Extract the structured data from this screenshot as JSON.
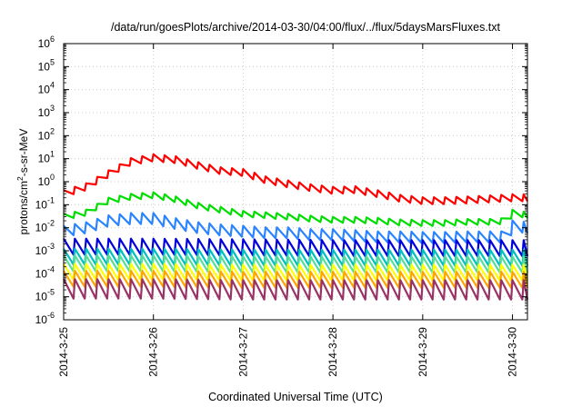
{
  "chart_data": {
    "type": "line",
    "title": "/data/run/goesPlots/archive/2014-03-30/04:00/flux/../flux/5daysMarsFluxes.txt",
    "xlabel": "Coordinated Universal Time (UTC)",
    "ylabel": {
      "prefix": "protons/cm",
      "sup": "2",
      "suffix": "-s-sr-MeV"
    },
    "xlim": [
      "2014-03-25T00:00",
      "2014-03-30T04:00"
    ],
    "x_ticks": [
      "2014-3-25",
      "2014-3-26",
      "2014-3-27",
      "2014-3-28",
      "2014-3-29",
      "2014-3-30"
    ],
    "yscale": "log",
    "ylim": [
      1e-06,
      1000000.0
    ],
    "y_ticks": [
      {
        "base": "10",
        "exp": "-6"
      },
      {
        "base": "10",
        "exp": "-5"
      },
      {
        "base": "10",
        "exp": "-4"
      },
      {
        "base": "10",
        "exp": "-3"
      },
      {
        "base": "10",
        "exp": "-2"
      },
      {
        "base": "10",
        "exp": "-1"
      },
      {
        "base": "10",
        "exp": "0"
      },
      {
        "base": "10",
        "exp": "1"
      },
      {
        "base": "10",
        "exp": "2"
      },
      {
        "base": "10",
        "exp": "3"
      },
      {
        "base": "10",
        "exp": "4"
      },
      {
        "base": "10",
        "exp": "5"
      },
      {
        "base": "10",
        "exp": "6"
      }
    ],
    "grid": true,
    "legend": "none",
    "sawtooth_period_hours": 3,
    "series": [
      {
        "color": "#ff0000",
        "hours": [
          0,
          6,
          12,
          18,
          24,
          30,
          36,
          42,
          48,
          54,
          60,
          66,
          72,
          78,
          84,
          90,
          96,
          102,
          108,
          114,
          120,
          124
        ],
        "values": [
          0.3,
          0.6,
          2.2,
          7.5,
          11,
          9,
          5,
          3,
          2.5,
          1.2,
          0.8,
          0.55,
          0.42,
          0.45,
          0.3,
          0.19,
          0.15,
          0.15,
          0.16,
          0.18,
          0.2,
          0.2
        ],
        "sawtooth_amplitude": 2.0
      },
      {
        "color": "#00dd00",
        "hours": [
          0,
          6,
          12,
          18,
          24,
          30,
          36,
          42,
          48,
          54,
          60,
          66,
          72,
          78,
          84,
          90,
          96,
          102,
          108,
          114,
          119,
          120,
          124
        ],
        "values": [
          0.03,
          0.045,
          0.15,
          0.22,
          0.26,
          0.17,
          0.09,
          0.06,
          0.04,
          0.035,
          0.03,
          0.025,
          0.022,
          0.022,
          0.02,
          0.017,
          0.016,
          0.016,
          0.018,
          0.018,
          0.02,
          0.045,
          0.035
        ],
        "sawtooth_amplitude": 1.8
      },
      {
        "color": "#2a84ff",
        "hours": [
          0,
          6,
          12,
          18,
          24,
          30,
          36,
          42,
          48,
          54,
          60,
          66,
          72,
          78,
          84,
          90,
          96,
          102,
          108,
          114,
          119,
          120,
          124
        ],
        "values": [
          0.007,
          0.01,
          0.02,
          0.025,
          0.025,
          0.015,
          0.01,
          0.008,
          0.007,
          0.006,
          0.006,
          0.005,
          0.005,
          0.0045,
          0.004,
          0.004,
          0.0038,
          0.0038,
          0.004,
          0.004,
          0.004,
          0.012,
          0.01
        ],
        "sawtooth_amplitude": 3.0
      },
      {
        "color": "#0000dd",
        "hours": [
          0,
          24,
          48,
          72,
          96,
          124
        ],
        "values": [
          0.0015,
          0.0015,
          0.0014,
          0.0013,
          0.0013,
          0.0013
        ],
        "sawtooth_amplitude": 5.0
      },
      {
        "color": "#00bfbf",
        "hours": [
          0,
          24,
          48,
          72,
          96,
          124
        ],
        "values": [
          0.00055,
          0.00055,
          0.0005,
          0.0005,
          0.0005,
          0.0005
        ],
        "sawtooth_amplitude": 5.0
      },
      {
        "color": "#55dd99",
        "hours": [
          0,
          24,
          48,
          72,
          96,
          124
        ],
        "values": [
          0.00028,
          0.00028,
          0.00025,
          0.00025,
          0.00025,
          0.00025
        ],
        "sawtooth_amplitude": 5.0
      },
      {
        "color": "#ffff00",
        "hours": [
          0,
          24,
          48,
          72,
          96,
          124
        ],
        "values": [
          0.00012,
          0.00012,
          0.00011,
          0.00011,
          0.00011,
          0.00011
        ],
        "sawtooth_amplitude": 5.0
      },
      {
        "color": "#ffa500",
        "hours": [
          0,
          24,
          48,
          72,
          96,
          124
        ],
        "values": [
          6e-05,
          6e-05,
          5.5e-05,
          5.5e-05,
          5.5e-05,
          5.5e-05
        ],
        "sawtooth_amplitude": 5.0
      },
      {
        "color": "#993366",
        "hours": [
          0,
          24,
          48,
          72,
          96,
          124
        ],
        "values": [
          2.2e-05,
          2.2e-05,
          2e-05,
          2e-05,
          2e-05,
          2e-05
        ],
        "sawtooth_amplitude": 7.0
      }
    ]
  }
}
